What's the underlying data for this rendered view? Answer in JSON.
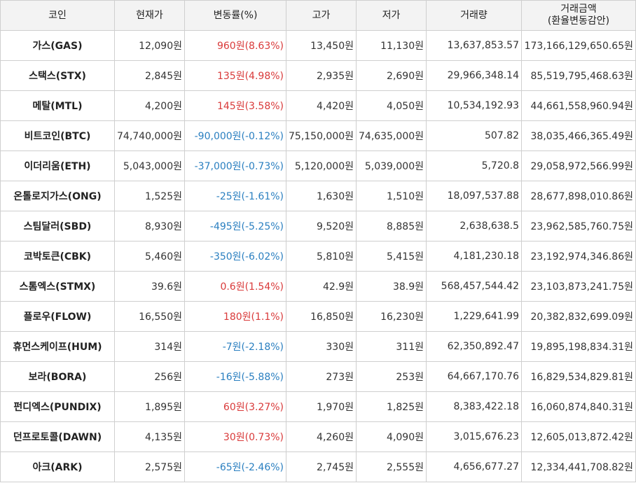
{
  "colors": {
    "up": "#d93a3a",
    "down": "#2a7fc0",
    "header_bg": "#f3f3f3",
    "border": "#cfcfcf"
  },
  "headers": {
    "coin": "코인",
    "price": "현재가",
    "change": "변동률(%)",
    "high": "고가",
    "low": "저가",
    "volume": "거래량",
    "amount_line1": "거래금액",
    "amount_line2": "(환율변동감안)"
  },
  "rows": [
    {
      "coin": "가스(GAS)",
      "price": "12,090원",
      "change": "960원(8.63%)",
      "direction": "up",
      "high": "13,450원",
      "low": "11,130원",
      "volume": "13,637,853.57",
      "amount": "173,166,129,650.65원"
    },
    {
      "coin": "스택스(STX)",
      "price": "2,845원",
      "change": "135원(4.98%)",
      "direction": "up",
      "high": "2,935원",
      "low": "2,690원",
      "volume": "29,966,348.14",
      "amount": "85,519,795,468.63원"
    },
    {
      "coin": "메탈(MTL)",
      "price": "4,200원",
      "change": "145원(3.58%)",
      "direction": "up",
      "high": "4,420원",
      "low": "4,050원",
      "volume": "10,534,192.93",
      "amount": "44,661,558,960.94원"
    },
    {
      "coin": "비트코인(BTC)",
      "price": "74,740,000원",
      "change": "-90,000원(-0.12%)",
      "direction": "down",
      "high": "75,150,000원",
      "low": "74,635,000원",
      "volume": "507.82",
      "amount": "38,035,466,365.49원"
    },
    {
      "coin": "이더리움(ETH)",
      "price": "5,043,000원",
      "change": "-37,000원(-0.73%)",
      "direction": "down",
      "high": "5,120,000원",
      "low": "5,039,000원",
      "volume": "5,720.8",
      "amount": "29,058,972,566.99원"
    },
    {
      "coin": "온톨로지가스(ONG)",
      "price": "1,525원",
      "change": "-25원(-1.61%)",
      "direction": "down",
      "high": "1,630원",
      "low": "1,510원",
      "volume": "18,097,537.88",
      "amount": "28,677,898,010.86원"
    },
    {
      "coin": "스팀달러(SBD)",
      "price": "8,930원",
      "change": "-495원(-5.25%)",
      "direction": "down",
      "high": "9,520원",
      "low": "8,885원",
      "volume": "2,638,638.5",
      "amount": "23,962,585,760.75원"
    },
    {
      "coin": "코박토큰(CBK)",
      "price": "5,460원",
      "change": "-350원(-6.02%)",
      "direction": "down",
      "high": "5,810원",
      "low": "5,415원",
      "volume": "4,181,230.18",
      "amount": "23,192,974,346.86원"
    },
    {
      "coin": "스톰엑스(STMX)",
      "price": "39.6원",
      "change": "0.6원(1.54%)",
      "direction": "up",
      "high": "42.9원",
      "low": "38.9원",
      "volume": "568,457,544.42",
      "amount": "23,103,873,241.75원"
    },
    {
      "coin": "플로우(FLOW)",
      "price": "16,550원",
      "change": "180원(1.1%)",
      "direction": "up",
      "high": "16,850원",
      "low": "16,230원",
      "volume": "1,229,641.99",
      "amount": "20,382,832,699.09원"
    },
    {
      "coin": "휴먼스케이프(HUM)",
      "price": "314원",
      "change": "-7원(-2.18%)",
      "direction": "down",
      "high": "330원",
      "low": "311원",
      "volume": "62,350,892.47",
      "amount": "19,895,198,834.31원"
    },
    {
      "coin": "보라(BORA)",
      "price": "256원",
      "change": "-16원(-5.88%)",
      "direction": "down",
      "high": "273원",
      "low": "253원",
      "volume": "64,667,170.76",
      "amount": "16,829,534,829.81원"
    },
    {
      "coin": "펀디엑스(PUNDIX)",
      "price": "1,895원",
      "change": "60원(3.27%)",
      "direction": "up",
      "high": "1,970원",
      "low": "1,825원",
      "volume": "8,383,422.18",
      "amount": "16,060,874,840.31원"
    },
    {
      "coin": "던프로토콜(DAWN)",
      "price": "4,135원",
      "change": "30원(0.73%)",
      "direction": "up",
      "high": "4,260원",
      "low": "4,090원",
      "volume": "3,015,676.23",
      "amount": "12,605,013,872.42원"
    },
    {
      "coin": "아크(ARK)",
      "price": "2,575원",
      "change": "-65원(-2.46%)",
      "direction": "down",
      "high": "2,745원",
      "low": "2,555원",
      "volume": "4,656,677.27",
      "amount": "12,334,441,708.82원"
    }
  ]
}
